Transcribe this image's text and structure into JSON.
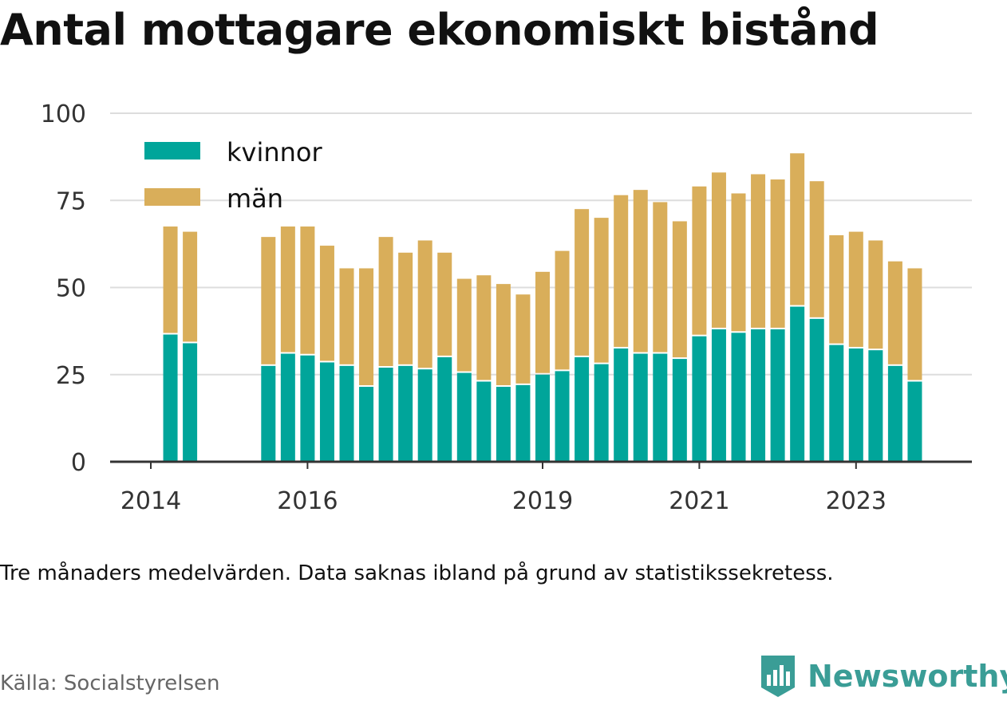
{
  "title": "Antal mottagare ekonomiskt bistånd",
  "note": "Tre månaders medelvärden. Data saknas ibland på grund av statistikssekretess.",
  "source": "Källa: Socialstyrelsen",
  "brand": {
    "name": "Newsworthy",
    "icon": "bar-chart-logo-icon"
  },
  "colors": {
    "kvinnor": "#00a59a",
    "man": "#d9ae5a",
    "grid": "#dddddd",
    "axis": "#333333"
  },
  "chart_data": {
    "type": "bar",
    "stacked": true,
    "y_ticks": [
      "0",
      "25",
      "50",
      "75",
      "100"
    ],
    "ylim": [
      0,
      100
    ],
    "grid": true,
    "legend_position": "top-left",
    "x_tick_labels": [
      {
        "label": "2014",
        "period": 0
      },
      {
        "label": "2016",
        "period": 8
      },
      {
        "label": "2019",
        "period": 20
      },
      {
        "label": "2021",
        "period": 28
      },
      {
        "label": "2023",
        "period": 36
      }
    ],
    "periods": [
      {
        "period": 1,
        "kvinnor": 36.5,
        "man": 31.0
      },
      {
        "period": 2,
        "kvinnor": 34.0,
        "man": 32.0
      },
      {
        "period": 6,
        "kvinnor": 27.5,
        "man": 37.0
      },
      {
        "period": 7,
        "kvinnor": 31.0,
        "man": 36.5
      },
      {
        "period": 8,
        "kvinnor": 30.5,
        "man": 37.0
      },
      {
        "period": 9,
        "kvinnor": 28.5,
        "man": 33.5
      },
      {
        "period": 10,
        "kvinnor": 27.5,
        "man": 28.0
      },
      {
        "period": 11,
        "kvinnor": 21.5,
        "man": 34.0
      },
      {
        "period": 12,
        "kvinnor": 27.0,
        "man": 37.5
      },
      {
        "period": 13,
        "kvinnor": 27.5,
        "man": 32.5
      },
      {
        "period": 14,
        "kvinnor": 26.5,
        "man": 37.0
      },
      {
        "period": 15,
        "kvinnor": 30.0,
        "man": 30.0
      },
      {
        "period": 16,
        "kvinnor": 25.5,
        "man": 27.0
      },
      {
        "period": 17,
        "kvinnor": 23.0,
        "man": 30.5
      },
      {
        "period": 18,
        "kvinnor": 21.5,
        "man": 29.5
      },
      {
        "period": 19,
        "kvinnor": 22.0,
        "man": 26.0
      },
      {
        "period": 20,
        "kvinnor": 25.0,
        "man": 29.5
      },
      {
        "period": 21,
        "kvinnor": 26.0,
        "man": 34.5
      },
      {
        "period": 22,
        "kvinnor": 30.0,
        "man": 42.5
      },
      {
        "period": 23,
        "kvinnor": 28.0,
        "man": 42.0
      },
      {
        "period": 24,
        "kvinnor": 32.5,
        "man": 44.0
      },
      {
        "period": 25,
        "kvinnor": 31.0,
        "man": 47.0
      },
      {
        "period": 26,
        "kvinnor": 31.0,
        "man": 43.5
      },
      {
        "period": 27,
        "kvinnor": 29.5,
        "man": 39.5
      },
      {
        "period": 28,
        "kvinnor": 36.0,
        "man": 43.0
      },
      {
        "period": 29,
        "kvinnor": 38.0,
        "man": 45.0
      },
      {
        "period": 30,
        "kvinnor": 37.0,
        "man": 40.0
      },
      {
        "period": 31,
        "kvinnor": 38.0,
        "man": 44.5
      },
      {
        "period": 32,
        "kvinnor": 38.0,
        "man": 43.0
      },
      {
        "period": 33,
        "kvinnor": 44.5,
        "man": 44.0
      },
      {
        "period": 34,
        "kvinnor": 41.0,
        "man": 39.5
      },
      {
        "period": 35,
        "kvinnor": 33.5,
        "man": 31.5
      },
      {
        "period": 36,
        "kvinnor": 32.5,
        "man": 33.5
      },
      {
        "period": 37,
        "kvinnor": 32.0,
        "man": 31.5
      },
      {
        "period": 38,
        "kvinnor": 27.5,
        "man": 30.0
      },
      {
        "period": 39,
        "kvinnor": 23.0,
        "man": 32.5
      }
    ],
    "series": [
      {
        "name": "kvinnor",
        "key": "kvinnor"
      },
      {
        "name": "män",
        "key": "man"
      }
    ]
  }
}
